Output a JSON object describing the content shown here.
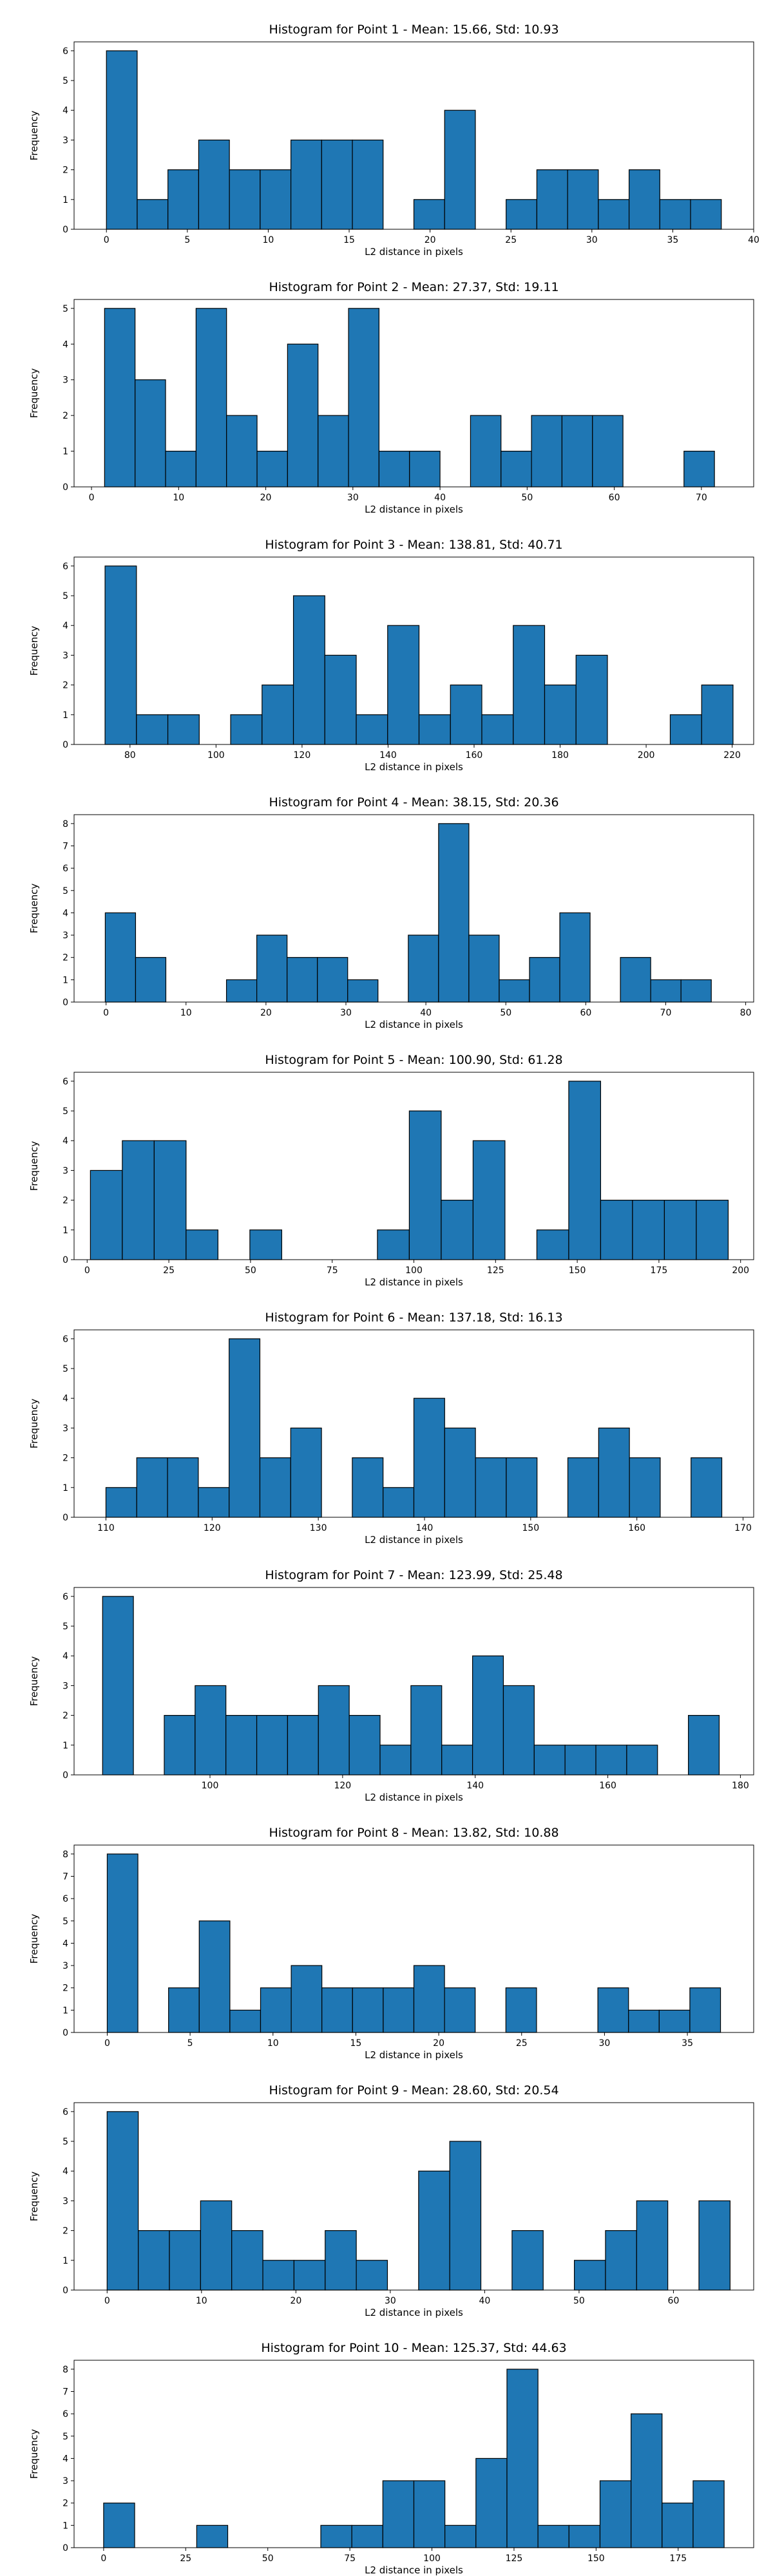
{
  "bar_color": "#1f77b4",
  "edge_color": "#000000",
  "chart_data": [
    {
      "type": "bar",
      "title": "Histogram for Point 1 - Mean: 15.66, Std: 10.93",
      "xlabel": "L2 distance in pixels",
      "ylabel": "Frequency",
      "xlim": [
        -2,
        40
      ],
      "ylim": [
        0,
        6.3
      ],
      "xticks": [
        0,
        5,
        10,
        15,
        20,
        25,
        30,
        35,
        40
      ],
      "yticks": [
        0,
        1,
        2,
        3,
        4,
        5,
        6
      ],
      "bin_edges": [
        0,
        1.9,
        3.8,
        5.7,
        7.6,
        9.5,
        11.4,
        13.3,
        15.2,
        17.1,
        19.0,
        20.9,
        22.8,
        24.7,
        26.6,
        28.5,
        30.4,
        32.3,
        34.2,
        36.1,
        38.0
      ],
      "values": [
        6,
        1,
        2,
        3,
        2,
        2,
        3,
        3,
        3,
        0,
        1,
        4,
        0,
        1,
        2,
        2,
        1,
        2,
        1,
        1
      ]
    },
    {
      "type": "bar",
      "title": "Histogram for Point 2 - Mean: 27.37, Std: 19.11",
      "xlabel": "L2 distance in pixels",
      "ylabel": "Frequency",
      "xlim": [
        -2,
        76
      ],
      "ylim": [
        0,
        5.25
      ],
      "xticks": [
        0,
        10,
        20,
        30,
        40,
        50,
        60,
        70
      ],
      "yticks": [
        0,
        1,
        2,
        3,
        4,
        5
      ],
      "bin_edges": [
        1.5,
        5.0,
        8.5,
        12.0,
        15.5,
        19.0,
        22.5,
        26.0,
        29.5,
        33.0,
        36.5,
        40.0,
        43.5,
        47.0,
        50.5,
        54.0,
        57.5,
        61.0,
        64.5,
        68.0,
        71.5
      ],
      "values": [
        5,
        3,
        1,
        5,
        2,
        1,
        4,
        2,
        5,
        1,
        1,
        0,
        2,
        1,
        2,
        2,
        2,
        0,
        0,
        1
      ]
    },
    {
      "type": "bar",
      "title": "Histogram for Point 3 - Mean: 138.81, Std: 40.71",
      "xlabel": "L2 distance in pixels",
      "ylabel": "Frequency",
      "xlim": [
        67,
        225
      ],
      "ylim": [
        0,
        6.3
      ],
      "xticks": [
        80,
        100,
        120,
        140,
        160,
        180,
        200,
        220
      ],
      "yticks": [
        0,
        1,
        2,
        3,
        4,
        5,
        6
      ],
      "bin_edges": [
        74.2,
        81.5,
        88.8,
        96.1,
        103.4,
        110.7,
        118.0,
        125.3,
        132.6,
        139.9,
        147.2,
        154.5,
        161.8,
        169.1,
        176.4,
        183.7,
        191.0,
        198.3,
        205.6,
        212.9,
        220.2
      ],
      "values": [
        6,
        1,
        1,
        0,
        1,
        2,
        5,
        3,
        1,
        4,
        1,
        2,
        1,
        4,
        2,
        3,
        0,
        0,
        1,
        2
      ]
    },
    {
      "type": "bar",
      "title": "Histogram for Point 4 - Mean: 38.15, Std: 20.36",
      "xlabel": "L2 distance in pixels",
      "ylabel": "Frequency",
      "xlim": [
        -4,
        81
      ],
      "ylim": [
        0,
        8.4
      ],
      "xticks": [
        0,
        10,
        20,
        30,
        40,
        50,
        60,
        70,
        80
      ],
      "yticks": [
        0,
        1,
        2,
        3,
        4,
        5,
        6,
        7,
        8
      ],
      "bin_edges": [
        -0.1,
        3.69,
        7.48,
        11.27,
        15.06,
        18.85,
        22.64,
        26.43,
        30.22,
        34.01,
        37.8,
        41.59,
        45.38,
        49.17,
        52.96,
        56.75,
        60.54,
        64.33,
        68.12,
        71.91,
        75.7
      ],
      "values": [
        4,
        2,
        0,
        0,
        1,
        3,
        2,
        2,
        1,
        0,
        3,
        8,
        3,
        1,
        2,
        4,
        0,
        2,
        1,
        1
      ]
    },
    {
      "type": "bar",
      "title": "Histogram for Point 5 - Mean: 100.90, Std: 61.28",
      "xlabel": "L2 distance in pixels",
      "ylabel": "Frequency",
      "xlim": [
        -4,
        204
      ],
      "ylim": [
        0,
        6.3
      ],
      "xticks": [
        0,
        25,
        50,
        75,
        100,
        125,
        150,
        175,
        200
      ],
      "yticks": [
        0,
        1,
        2,
        3,
        4,
        5,
        6
      ],
      "bin_edges": [
        1.0,
        10.76,
        20.52,
        30.28,
        40.04,
        49.8,
        59.56,
        69.32,
        79.08,
        88.84,
        98.6,
        108.36,
        118.12,
        127.88,
        137.64,
        147.4,
        157.16,
        166.92,
        176.68,
        186.44,
        196.2
      ],
      "values": [
        3,
        4,
        4,
        1,
        0,
        1,
        0,
        0,
        0,
        1,
        5,
        2,
        4,
        0,
        1,
        6,
        2,
        2,
        2,
        2
      ]
    },
    {
      "type": "bar",
      "title": "Histogram for Point 6 - Mean: 137.18, Std: 16.13",
      "xlabel": "L2 distance in pixels",
      "ylabel": "Frequency",
      "xlim": [
        107,
        171
      ],
      "ylim": [
        0,
        6.3
      ],
      "xticks": [
        110,
        120,
        130,
        140,
        150,
        160,
        170
      ],
      "yticks": [
        0,
        1,
        2,
        3,
        4,
        5,
        6
      ],
      "bin_edges": [
        110.0,
        112.9,
        115.8,
        118.7,
        121.6,
        124.5,
        127.4,
        130.3,
        133.2,
        136.1,
        139.0,
        141.9,
        144.8,
        147.7,
        150.6,
        153.5,
        156.4,
        159.3,
        162.2,
        165.1,
        168.0
      ],
      "values": [
        1,
        2,
        2,
        1,
        6,
        2,
        3,
        0,
        2,
        1,
        4,
        3,
        2,
        2,
        0,
        2,
        3,
        2,
        0,
        2
      ]
    },
    {
      "type": "bar",
      "title": "Histogram for Point 7 - Mean: 123.99, Std: 25.48",
      "xlabel": "L2 distance in pixels",
      "ylabel": "Frequency",
      "xlim": [
        79.5,
        182
      ],
      "ylim": [
        0,
        6.3
      ],
      "xticks": [
        100,
        120,
        140,
        160,
        180
      ],
      "yticks": [
        0,
        1,
        2,
        3,
        4,
        5,
        6
      ],
      "bin_edges": [
        83.8,
        88.45,
        93.1,
        97.75,
        102.4,
        107.05,
        111.7,
        116.35,
        121.0,
        125.65,
        130.3,
        134.95,
        139.6,
        144.25,
        148.9,
        153.55,
        158.2,
        162.85,
        167.5,
        172.15,
        176.8
      ],
      "values": [
        6,
        0,
        2,
        3,
        2,
        2,
        2,
        3,
        2,
        1,
        3,
        1,
        4,
        3,
        1,
        1,
        1,
        1,
        0,
        2
      ]
    },
    {
      "type": "bar",
      "title": "Histogram for Point 8 - Mean: 13.82, Std: 10.88",
      "xlabel": "L2 distance in pixels",
      "ylabel": "Frequency",
      "xlim": [
        -2,
        39
      ],
      "ylim": [
        0,
        8.4
      ],
      "xticks": [
        0,
        5,
        10,
        15,
        20,
        25,
        30,
        35
      ],
      "yticks": [
        0,
        1,
        2,
        3,
        4,
        5,
        6,
        7,
        8
      ],
      "bin_edges": [
        0,
        1.85,
        3.7,
        5.55,
        7.4,
        9.25,
        11.1,
        12.95,
        14.8,
        16.65,
        18.5,
        20.35,
        22.2,
        24.05,
        25.9,
        27.75,
        29.6,
        31.45,
        33.3,
        35.15,
        37.0
      ],
      "values": [
        8,
        0,
        2,
        5,
        1,
        2,
        3,
        2,
        2,
        2,
        3,
        2,
        0,
        2,
        0,
        0,
        2,
        1,
        1,
        2
      ]
    },
    {
      "type": "bar",
      "title": "Histogram for Point 9 - Mean: 28.60, Std: 20.54",
      "xlabel": "L2 distance in pixels",
      "ylabel": "Frequency",
      "xlim": [
        -3.5,
        68.5
      ],
      "ylim": [
        0,
        6.3
      ],
      "xticks": [
        0,
        10,
        20,
        30,
        40,
        50,
        60
      ],
      "yticks": [
        0,
        1,
        2,
        3,
        4,
        5,
        6
      ],
      "bin_edges": [
        0,
        3.3,
        6.6,
        9.9,
        13.2,
        16.5,
        19.8,
        23.1,
        26.4,
        29.7,
        33.0,
        36.3,
        39.6,
        42.9,
        46.2,
        49.5,
        52.8,
        56.1,
        59.4,
        62.7,
        66.0
      ],
      "values": [
        6,
        2,
        2,
        3,
        2,
        1,
        1,
        2,
        1,
        0,
        4,
        5,
        0,
        2,
        0,
        1,
        2,
        3,
        0,
        3
      ]
    },
    {
      "type": "bar",
      "title": "Histogram for Point 10 - Mean: 125.37, Std: 44.63",
      "xlabel": "L2 distance in pixels",
      "ylabel": "Frequency",
      "xlim": [
        -9,
        198
      ],
      "ylim": [
        0,
        8.4
      ],
      "xticks": [
        0,
        25,
        50,
        75,
        100,
        125,
        150,
        175
      ],
      "yticks": [
        0,
        1,
        2,
        3,
        4,
        5,
        6,
        7,
        8
      ],
      "bin_edges": [
        0,
        9.45,
        18.9,
        28.35,
        37.8,
        47.25,
        56.7,
        66.15,
        75.6,
        85.05,
        94.5,
        103.95,
        113.4,
        122.85,
        132.3,
        141.75,
        151.2,
        160.65,
        170.1,
        179.55,
        189.0
      ],
      "values": [
        2,
        0,
        0,
        1,
        0,
        0,
        0,
        1,
        1,
        3,
        3,
        1,
        4,
        8,
        1,
        1,
        3,
        6,
        2,
        3
      ]
    }
  ]
}
